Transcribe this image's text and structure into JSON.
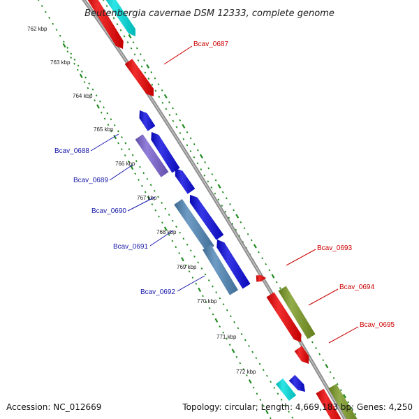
{
  "header": {
    "title": "Beutenbergia cavernae DSM 12333, complete genome"
  },
  "footer": {
    "accession": "Accession: NC_012669",
    "summary": "Topology: circular; Length: 4,669,183 bp; Genes: 4,250"
  },
  "colors": {
    "backbone": "#8c8c8c",
    "tick": "#1e8a1e",
    "label_forward": "#cc0000",
    "label_reverse": "#1a1aaa",
    "red": "#ee0000",
    "cyan": "#00e0e0",
    "blue": "#0a0ae0",
    "purple": "#7a62d2",
    "steelblue": "#4f86b8",
    "olive": "#7a9a22"
  },
  "kbp_labels": [
    "762 kbp",
    "763 kbp",
    "764 kbp",
    "765 kbp",
    "766 kbp",
    "767 kbp",
    "768 kbp",
    "769 kbp",
    "770 kbp",
    "771 kbp",
    "772 kbp"
  ],
  "gene_labels": [
    {
      "text": "Bcav_0687",
      "strand": "forward"
    },
    {
      "text": "Bcav_0688",
      "strand": "reverse"
    },
    {
      "text": "Bcav_0689",
      "strand": "reverse"
    },
    {
      "text": "Bcav_0690",
      "strand": "reverse"
    },
    {
      "text": "Bcav_0691",
      "strand": "reverse"
    },
    {
      "text": "Bcav_0692",
      "strand": "reverse"
    },
    {
      "text": "Bcav_0693",
      "strand": "forward"
    },
    {
      "text": "Bcav_0694",
      "strand": "forward"
    },
    {
      "text": "Bcav_0695",
      "strand": "forward"
    }
  ]
}
